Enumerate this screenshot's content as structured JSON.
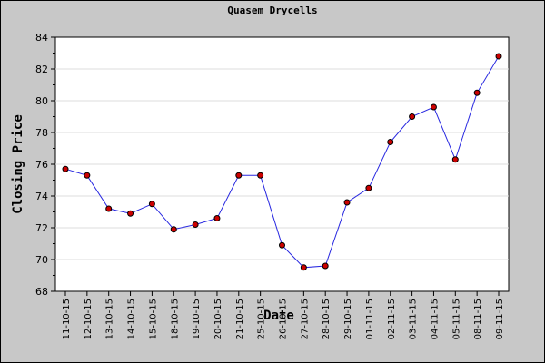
{
  "chart_data": {
    "type": "line",
    "title": "Quasem Drycells",
    "xlabel": "Date",
    "ylabel": "Closing Price",
    "ylim": [
      68,
      84
    ],
    "yticks": [
      68,
      70,
      72,
      74,
      76,
      78,
      80,
      82,
      84
    ],
    "grid": true,
    "legend": "none",
    "categories": [
      "11-10-15",
      "12-10-15",
      "13-10-15",
      "14-10-15",
      "15-10-15",
      "18-10-15",
      "19-10-15",
      "20-10-15",
      "21-10-15",
      "25-10-15",
      "26-10-15",
      "27-10-15",
      "28-10-15",
      "29-10-15",
      "01-11-15",
      "02-11-15",
      "03-11-15",
      "04-11-15",
      "05-11-15",
      "08-11-15",
      "09-11-15"
    ],
    "series": [
      {
        "values": [
          75.7,
          75.3,
          73.2,
          72.9,
          73.5,
          71.9,
          72.2,
          72.6,
          75.3,
          75.3,
          70.9,
          69.5,
          69.6,
          73.6,
          74.5,
          77.4,
          79.0,
          79.6,
          76.3,
          80.5,
          82.8
        ]
      }
    ],
    "colors": {
      "frame": "#c8c8c8",
      "plot_bg": "#ffffff",
      "grid": "#dcdcdc",
      "line": "#2828e0",
      "marker_fill": "#cc0000",
      "marker_edge": "#000000"
    }
  }
}
